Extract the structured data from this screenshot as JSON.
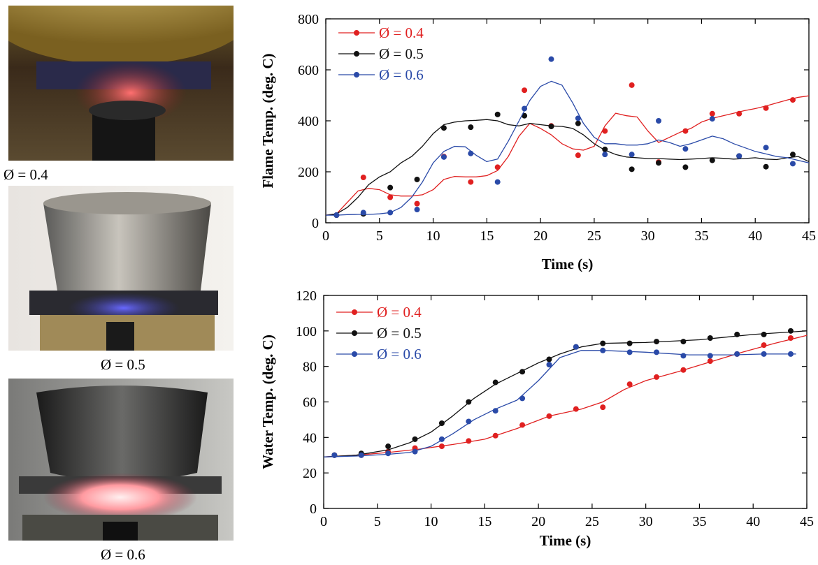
{
  "photos": [
    {
      "caption": "Ø = 0.4",
      "flame_color": "#ff5a5a"
    },
    {
      "caption": "Ø = 0.5",
      "flame_color": "#5a5ae0"
    },
    {
      "caption": "Ø = 0.6",
      "flame_color": "#ffb0b8"
    }
  ],
  "chart_data": [
    {
      "type": "scatter",
      "xlabel": "Time (s)",
      "ylabel": "Flame Temp. (deg. C)",
      "xlim": [
        0,
        45
      ],
      "ylim": [
        0,
        800
      ],
      "xticks": [
        0,
        5,
        10,
        15,
        20,
        25,
        30,
        35,
        40,
        45
      ],
      "yticks": [
        0,
        200,
        400,
        600,
        800
      ],
      "grid": false,
      "legend": "top-left",
      "series": [
        {
          "name": "Ø = 0.4",
          "color": "#e02020",
          "x": [
            1,
            3.5,
            6,
            8.5,
            11,
            13.5,
            16,
            18.5,
            21,
            23.5,
            26,
            28.5,
            31,
            33.5,
            36,
            38.5,
            41,
            43.5
          ],
          "y": [
            30,
            178,
            100,
            75,
            260,
            160,
            218,
            520,
            380,
            265,
            360,
            540,
            238,
            360,
            428,
            428,
            450,
            482
          ],
          "fit_x": [
            0,
            1,
            2,
            3,
            4,
            5,
            6,
            7,
            8,
            9,
            10,
            11,
            12,
            13,
            14,
            15,
            16,
            17,
            18,
            19,
            20,
            21,
            22,
            23,
            24,
            25,
            26,
            27,
            28,
            29,
            30,
            31,
            32,
            33,
            34,
            35,
            36,
            37,
            38,
            39,
            40,
            41,
            42,
            43,
            44,
            45
          ],
          "fit_y": [
            30,
            35,
            80,
            125,
            135,
            130,
            110,
            105,
            105,
            110,
            130,
            170,
            182,
            180,
            180,
            185,
            205,
            260,
            340,
            390,
            370,
            345,
            310,
            290,
            285,
            300,
            380,
            430,
            420,
            415,
            360,
            315,
            335,
            355,
            370,
            395,
            410,
            420,
            430,
            440,
            448,
            458,
            470,
            482,
            492,
            498
          ]
        },
        {
          "name": "Ø = 0.5",
          "color": "#111111",
          "x": [
            1,
            3.5,
            6,
            8.5,
            11,
            13.5,
            16,
            18.5,
            21,
            23.5,
            26,
            28.5,
            31,
            33.5,
            36,
            38.5,
            41,
            43.5
          ],
          "y": [
            30,
            35,
            138,
            170,
            372,
            375,
            425,
            420,
            378,
            390,
            288,
            210,
            235,
            218,
            245,
            262,
            220,
            268
          ],
          "fit_x": [
            0,
            1,
            2,
            3,
            4,
            5,
            6,
            7,
            8,
            9,
            10,
            11,
            12,
            13,
            14,
            15,
            16,
            17,
            18,
            19,
            20,
            21,
            22,
            23,
            24,
            25,
            26,
            27,
            28,
            29,
            30,
            31,
            32,
            33,
            34,
            35,
            36,
            37,
            38,
            39,
            40,
            41,
            42,
            43,
            44,
            45
          ],
          "fit_y": [
            30,
            35,
            60,
            100,
            150,
            180,
            200,
            235,
            260,
            300,
            350,
            385,
            395,
            400,
            402,
            405,
            400,
            385,
            380,
            390,
            385,
            380,
            378,
            370,
            345,
            310,
            285,
            268,
            258,
            255,
            252,
            252,
            250,
            248,
            250,
            252,
            255,
            253,
            250,
            252,
            255,
            250,
            248,
            255,
            260,
            240
          ]
        },
        {
          "name": "Ø = 0.6",
          "color": "#2a4aa8",
          "x": [
            1,
            3.5,
            6,
            8.5,
            11,
            13.5,
            16,
            18.5,
            21,
            23.5,
            26,
            28.5,
            31,
            33.5,
            36,
            38.5,
            41,
            43.5
          ],
          "y": [
            30,
            40,
            40,
            52,
            258,
            272,
            160,
            448,
            642,
            410,
            268,
            268,
            400,
            290,
            408,
            262,
            295,
            232
          ],
          "fit_x": [
            0,
            1,
            2,
            3,
            4,
            5,
            6,
            7,
            8,
            9,
            10,
            11,
            12,
            13,
            14,
            15,
            16,
            17,
            18,
            19,
            20,
            21,
            22,
            23,
            24,
            25,
            26,
            27,
            28,
            29,
            30,
            31,
            32,
            33,
            34,
            35,
            36,
            37,
            38,
            39,
            40,
            41,
            42,
            43,
            44,
            45
          ],
          "fit_y": [
            30,
            30,
            32,
            33,
            33,
            35,
            40,
            60,
            100,
            160,
            235,
            280,
            300,
            298,
            265,
            240,
            250,
            320,
            400,
            480,
            535,
            555,
            540,
            470,
            390,
            335,
            310,
            310,
            305,
            305,
            310,
            325,
            315,
            300,
            310,
            325,
            340,
            330,
            310,
            295,
            280,
            270,
            260,
            255,
            245,
            235
          ]
        }
      ]
    },
    {
      "type": "scatter",
      "xlabel": "Time (s)",
      "ylabel": "Water Temp. (deg. C)",
      "xlim": [
        0,
        45
      ],
      "ylim": [
        0,
        120
      ],
      "xticks": [
        0,
        5,
        10,
        15,
        20,
        25,
        30,
        35,
        40,
        45
      ],
      "yticks": [
        0,
        20,
        40,
        60,
        80,
        100,
        120
      ],
      "grid": false,
      "legend": "top-left",
      "series": [
        {
          "name": "Ø = 0.4",
          "color": "#e02020",
          "x": [
            1,
            3.5,
            6,
            8.5,
            11,
            13.5,
            16,
            18.5,
            21,
            23.5,
            26,
            28.5,
            31,
            33.5,
            36,
            38.5,
            41,
            43.5
          ],
          "y": [
            30,
            30,
            32,
            34,
            35,
            38,
            41,
            47,
            52,
            56,
            57,
            70,
            74,
            78,
            83,
            87,
            92,
            96
          ],
          "fit_x": [
            0,
            3,
            6,
            9,
            12,
            15,
            18,
            21,
            24,
            26,
            28,
            30,
            33,
            36,
            39,
            42,
            45
          ],
          "fit_y": [
            29,
            30,
            31.5,
            33.5,
            36,
            39,
            45,
            52,
            56,
            60,
            67,
            72,
            77,
            82.5,
            88,
            93,
            97.5
          ]
        },
        {
          "name": "Ø = 0.5",
          "color": "#111111",
          "x": [
            1,
            3.5,
            6,
            8.5,
            11,
            13.5,
            16,
            18.5,
            21,
            23.5,
            26,
            28.5,
            31,
            33.5,
            36,
            38.5,
            41,
            43.5
          ],
          "y": [
            30,
            31,
            35,
            39,
            48,
            60,
            71,
            77,
            84,
            91,
            93,
            93,
            94,
            94,
            96,
            98,
            98,
            100
          ],
          "fit_x": [
            0,
            3,
            6,
            8,
            10,
            12,
            14,
            16,
            18,
            20,
            22,
            24,
            26,
            30,
            35,
            40,
            45
          ],
          "fit_y": [
            29,
            30,
            33,
            37,
            43,
            52,
            62,
            70,
            76,
            82,
            87,
            91,
            93,
            93.5,
            95,
            98,
            100
          ]
        },
        {
          "name": "Ø = 0.6",
          "color": "#2a4aa8",
          "x": [
            1,
            3.5,
            6,
            8.5,
            11,
            13.5,
            16,
            18.5,
            21,
            23.5,
            26,
            28.5,
            31,
            33.5,
            36,
            38.5,
            41,
            43.5
          ],
          "y": [
            30,
            30,
            31,
            32,
            39,
            49,
            55,
            62,
            81,
            91,
            89,
            88,
            88,
            86,
            86,
            87,
            87,
            87
          ],
          "fit_x": [
            0,
            3,
            6,
            8,
            10,
            12,
            14,
            16,
            18,
            20,
            22,
            24,
            26,
            30,
            34,
            38,
            41,
            44
          ],
          "fit_y": [
            29,
            29.5,
            30.5,
            31.5,
            35,
            42,
            50,
            56,
            61,
            72,
            85,
            89,
            89,
            88,
            86.5,
            86.5,
            87,
            87
          ]
        }
      ]
    }
  ]
}
